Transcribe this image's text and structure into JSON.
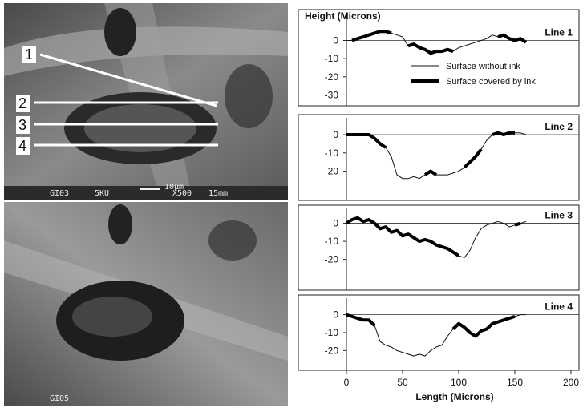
{
  "figure": {
    "top_image": {
      "line_labels": [
        "1",
        "2",
        "3",
        "4"
      ],
      "caption": [
        "GI03",
        "5KU",
        "10μm",
        "X500",
        "15mm"
      ]
    },
    "bottom_image": {
      "caption": [
        "GI05"
      ]
    }
  },
  "chart_data": [
    {
      "type": "line",
      "title": "Line 1",
      "ylabel": "Height (Microns)",
      "legend": "inside",
      "x": [
        0,
        5,
        10,
        15,
        20,
        25,
        30,
        35,
        40,
        45,
        50,
        55,
        60,
        65,
        70,
        75,
        80,
        85,
        90,
        95,
        100,
        105,
        110,
        115,
        120,
        125,
        130,
        135,
        140,
        145,
        150,
        155,
        160
      ],
      "xlim": [
        0,
        200
      ],
      "ylim": [
        -36,
        17
      ],
      "yticks": [
        0,
        -10,
        -20,
        -30
      ],
      "series": [
        {
          "name": "Surface without ink",
          "color": "#111111",
          "width": 1,
          "values": [
            0,
            0,
            1,
            2,
            3,
            4,
            5,
            5,
            4,
            3,
            2,
            -3,
            -2,
            -4,
            -5,
            -7,
            -6,
            -6,
            -5,
            -6,
            -4,
            -3,
            -2,
            -1,
            0,
            1,
            3,
            2,
            3,
            1,
            0,
            1,
            -1
          ]
        },
        {
          "name": "Surface covered by ink",
          "color": "#000000",
          "width": 4,
          "values": [
            null,
            0,
            1,
            2,
            3,
            4,
            5,
            5,
            4,
            null,
            null,
            -3,
            -2,
            -4,
            -5,
            -7,
            -6,
            -6,
            -5,
            -6,
            null,
            null,
            null,
            null,
            null,
            null,
            null,
            2,
            3,
            1,
            0,
            1,
            -1
          ]
        }
      ]
    },
    {
      "type": "line",
      "title": "Line 2",
      "x": [
        0,
        5,
        10,
        15,
        20,
        25,
        30,
        35,
        40,
        45,
        50,
        55,
        60,
        65,
        70,
        75,
        80,
        85,
        90,
        95,
        100,
        105,
        110,
        115,
        120,
        125,
        130,
        135,
        140,
        145,
        150,
        155,
        160
      ],
      "xlim": [
        0,
        200
      ],
      "ylim": [
        -36,
        11
      ],
      "yticks": [
        0,
        -10,
        -20
      ],
      "series": [
        {
          "color": "#111111",
          "width": 1,
          "values": [
            0,
            0,
            0,
            0,
            0,
            -2,
            -5,
            -7,
            -12,
            -22,
            -24,
            -24,
            -23,
            -24,
            -22,
            -20,
            -22,
            -22,
            -22,
            -21,
            -20,
            -18,
            -15,
            -12,
            -8,
            -3,
            0,
            1,
            0,
            1,
            1,
            1,
            0
          ]
        },
        {
          "color": "#000000",
          "width": 4,
          "values": [
            0,
            0,
            0,
            0,
            0,
            -2,
            -5,
            -7,
            null,
            null,
            null,
            null,
            null,
            null,
            -22,
            -20,
            -22,
            null,
            null,
            null,
            null,
            -18,
            -15,
            -12,
            -8,
            null,
            0,
            1,
            0,
            1,
            1,
            null,
            null
          ]
        }
      ]
    },
    {
      "type": "line",
      "title": "Line 3",
      "x": [
        0,
        5,
        10,
        15,
        20,
        25,
        30,
        35,
        40,
        45,
        50,
        55,
        60,
        65,
        70,
        75,
        80,
        85,
        90,
        95,
        100,
        105,
        110,
        115,
        120,
        125,
        130,
        135,
        140,
        145,
        150,
        155,
        160
      ],
      "xlim": [
        0,
        200
      ],
      "ylim": [
        -37,
        10
      ],
      "yticks": [
        0,
        -10,
        -20
      ],
      "series": [
        {
          "color": "#111111",
          "width": 1,
          "values": [
            0,
            2,
            3,
            1,
            2,
            0,
            -3,
            -2,
            -5,
            -4,
            -7,
            -6,
            -8,
            -10,
            -9,
            -10,
            -12,
            -13,
            -14,
            -16,
            -18,
            -19,
            -15,
            -8,
            -3,
            -1,
            0,
            1,
            0,
            -2,
            -1,
            0,
            1
          ]
        },
        {
          "color": "#000000",
          "width": 4,
          "values": [
            0,
            2,
            3,
            1,
            2,
            0,
            -3,
            -2,
            -5,
            -4,
            -7,
            -6,
            -8,
            -10,
            -9,
            -10,
            -12,
            -13,
            -14,
            -16,
            -18,
            null,
            null,
            null,
            null,
            null,
            null,
            null,
            null,
            null,
            -1,
            0,
            null
          ]
        }
      ]
    },
    {
      "type": "line",
      "title": "Line 4",
      "xlabel": "Length (Microns)",
      "x": [
        0,
        5,
        10,
        15,
        20,
        25,
        30,
        35,
        40,
        45,
        50,
        55,
        60,
        65,
        70,
        75,
        80,
        85,
        90,
        95,
        100,
        105,
        110,
        115,
        120,
        125,
        130,
        135,
        140,
        145,
        150,
        155,
        160
      ],
      "xlim": [
        0,
        200
      ],
      "xticks": [
        0,
        50,
        100,
        150,
        200
      ],
      "ylim": [
        -31,
        11
      ],
      "yticks": [
        0,
        -10,
        -20
      ],
      "series": [
        {
          "color": "#111111",
          "width": 1,
          "values": [
            0,
            -1,
            -2,
            -3,
            -3,
            -6,
            -15,
            -17,
            -18,
            -20,
            -21,
            -22,
            -23,
            -22,
            -23,
            -20,
            -18,
            -17,
            -12,
            -8,
            -5,
            -7,
            -10,
            -12,
            -9,
            -8,
            -5,
            -4,
            -3,
            -2,
            -1,
            0,
            0
          ]
        },
        {
          "color": "#000000",
          "width": 4,
          "values": [
            0,
            -1,
            -2,
            -3,
            -3,
            -6,
            null,
            null,
            null,
            null,
            null,
            null,
            null,
            null,
            null,
            null,
            null,
            null,
            null,
            -8,
            -5,
            -7,
            -10,
            -12,
            -9,
            -8,
            -5,
            -4,
            -3,
            -2,
            -1,
            null,
            null
          ]
        }
      ]
    }
  ]
}
